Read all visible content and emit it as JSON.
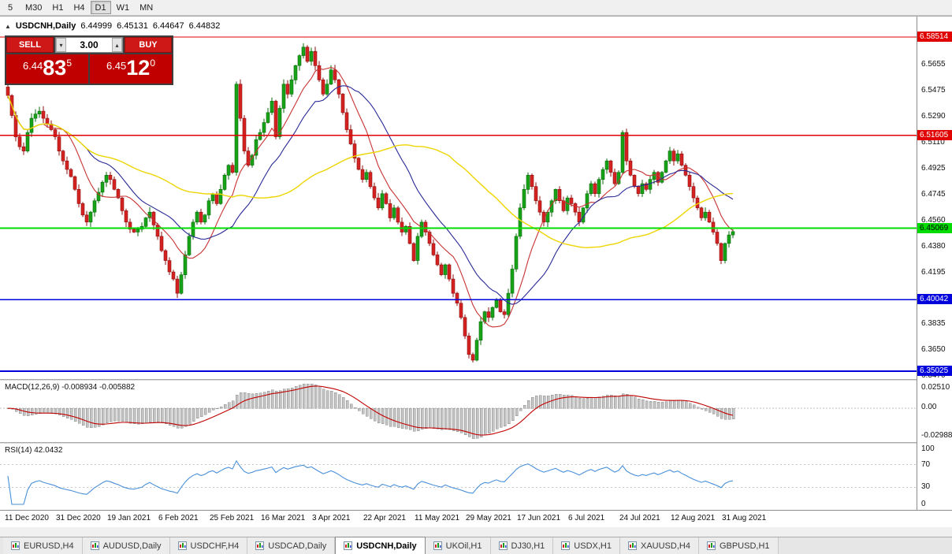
{
  "toolbar": {
    "timeframes": [
      {
        "label": "5",
        "active": false
      },
      {
        "label": "M30",
        "active": false
      },
      {
        "label": "H1",
        "active": false
      },
      {
        "label": "H4",
        "active": false
      },
      {
        "label": "D1",
        "active": true
      },
      {
        "label": "W1",
        "active": false
      },
      {
        "label": "MN",
        "active": false
      }
    ]
  },
  "header": {
    "panel_toggle": "▲",
    "symbol": "USDCNH,Daily",
    "open": "6.44999",
    "high": "6.45131",
    "low": "6.44647",
    "close": "6.44832"
  },
  "trade_panel": {
    "sell_label": "SELL",
    "buy_label": "BUY",
    "volume": "3.00",
    "volume_down_glyph": "▾",
    "volume_up_glyph": "▴",
    "sell": {
      "big": "6.44",
      "pips": "83",
      "sup": "5"
    },
    "buy": {
      "big": "6.45",
      "pips": "12",
      "sup": "0"
    }
  },
  "macd": {
    "label": "MACD(12,26,9) -0.008934 -0.005882",
    "axis": [
      "0.02510",
      "0.00",
      "-0.02988"
    ],
    "histogram_color": "#C4C4C4",
    "signal_color": "#C00000"
  },
  "rsi": {
    "label": "RSI(14) 42.0432",
    "axis": [
      "100",
      "70",
      "30",
      "0"
    ],
    "levels": [
      70,
      30
    ],
    "line_color": "#4A90D9"
  },
  "tabs": [
    {
      "label": "EURUSD,H4",
      "active": false
    },
    {
      "label": "AUDUSD,Daily",
      "active": false
    },
    {
      "label": "USDCHF,H4",
      "active": false
    },
    {
      "label": "USDCAD,Daily",
      "active": false
    },
    {
      "label": "USDCNH,Daily",
      "active": true
    },
    {
      "label": "UKOil,H1",
      "active": false
    },
    {
      "label": "DJ30,H1",
      "active": false
    },
    {
      "label": "USDX,H1",
      "active": false
    },
    {
      "label": "XAUUSD,H4",
      "active": false
    },
    {
      "label": "GBPUSD,H1",
      "active": false
    }
  ],
  "chart_data": {
    "type": "candlestick",
    "symbol": "USDCNH",
    "timeframe": "Daily",
    "ohlc_header": {
      "open": 6.44999,
      "high": 6.45131,
      "low": 6.44647,
      "close": 6.44832
    },
    "price_range": {
      "top": 6.5995,
      "bottom": 6.3447
    },
    "candle_up_color": "#17A317",
    "candle_down_color": "#D42222",
    "closes": [
      6.544,
      6.53,
      6.515,
      6.508,
      6.505,
      6.518,
      6.528,
      6.531,
      6.533,
      6.528,
      6.524,
      6.52,
      6.515,
      6.505,
      6.498,
      6.492,
      6.487,
      6.478,
      6.468,
      6.46,
      6.455,
      6.462,
      6.47,
      6.476,
      6.483,
      6.488,
      6.485,
      6.478,
      6.472,
      6.463,
      6.455,
      6.45,
      6.448,
      6.45,
      6.452,
      6.458,
      6.462,
      6.453,
      6.445,
      6.435,
      6.428,
      6.42,
      6.415,
      6.405,
      6.418,
      6.432,
      6.445,
      6.455,
      6.462,
      6.455,
      6.46,
      6.47,
      6.475,
      6.468,
      6.478,
      6.488,
      6.495,
      6.49,
      6.552,
      6.528,
      6.505,
      6.495,
      6.502,
      6.513,
      6.518,
      6.525,
      6.532,
      6.54,
      6.515,
      6.535,
      6.552,
      6.545,
      6.555,
      6.565,
      6.572,
      6.578,
      6.568,
      6.575,
      6.565,
      6.555,
      6.545,
      6.552,
      6.562,
      6.555,
      6.545,
      6.532,
      6.52,
      6.51,
      6.5,
      6.492,
      6.485,
      6.49,
      6.48,
      6.472,
      6.465,
      6.475,
      6.468,
      6.458,
      6.465,
      6.455,
      6.448,
      6.452,
      6.44,
      6.428,
      6.445,
      6.455,
      6.448,
      6.44,
      6.432,
      6.425,
      6.418,
      6.425,
      6.415,
      6.405,
      6.398,
      6.388,
      6.375,
      6.362,
      6.358,
      6.372,
      6.385,
      6.392,
      6.388,
      6.395,
      6.4,
      6.392,
      6.39,
      6.405,
      6.422,
      6.445,
      6.465,
      6.478,
      6.488,
      6.48,
      6.47,
      6.462,
      6.455,
      6.462,
      6.47,
      6.478,
      6.47,
      6.463,
      6.472,
      6.468,
      6.462,
      6.455,
      6.465,
      6.475,
      6.482,
      6.475,
      6.485,
      6.492,
      6.498,
      6.49,
      6.482,
      6.49,
      6.518,
      6.498,
      6.488,
      6.48,
      6.475,
      6.482,
      6.478,
      6.485,
      6.49,
      6.483,
      6.49,
      6.498,
      6.505,
      6.498,
      6.503,
      6.495,
      6.488,
      6.48,
      6.472,
      6.465,
      6.458,
      6.462,
      6.455,
      6.448,
      6.44,
      6.428,
      6.44,
      6.446,
      6.44832
    ],
    "hlines": [
      {
        "price": 6.58514,
        "label": "6.58514",
        "color": "#E00000",
        "text_color": "#FFFFFF",
        "width": 1.2
      },
      {
        "price": 6.51605,
        "label": "6.51605",
        "color": "#E00000",
        "text_color": "#FFFFFF",
        "width": 1.2
      },
      {
        "price": 6.45069,
        "label": "6.45069",
        "color": "#00DC00",
        "text_color": "#000000",
        "width": 2
      },
      {
        "price": 6.40042,
        "label": "6.40042",
        "color": "#0000DC",
        "text_color": "#FFFFFF",
        "width": 1.6
      },
      {
        "price": 6.35025,
        "label": "6.35025",
        "color": "#0000DC",
        "text_color": "#FFFFFF",
        "width": 1.6
      }
    ],
    "axis_ticks": [
      6.5655,
      6.5475,
      6.529,
      6.511,
      6.4925,
      6.4745,
      6.456,
      6.438,
      6.4195,
      6.3835,
      6.365,
      6.347
    ],
    "moving_averages": [
      {
        "period": 10,
        "color": "#C83232",
        "width": 1.1
      },
      {
        "period": 21,
        "color": "#282896",
        "width": 1.1
      },
      {
        "period": 55,
        "color": "#EDD500",
        "width": 1.4
      }
    ],
    "x_labels": [
      {
        "label": "11 Dec 2020",
        "i": 0
      },
      {
        "label": "31 Dec 2020",
        "i": 13
      },
      {
        "label": "19 Jan 2021",
        "i": 26
      },
      {
        "label": "6 Feb 2021",
        "i": 39
      },
      {
        "label": "25 Feb 2021",
        "i": 52
      },
      {
        "label": "16 Mar 2021",
        "i": 65
      },
      {
        "label": "3 Apr 2021",
        "i": 78
      },
      {
        "label": "22 Apr 2021",
        "i": 91
      },
      {
        "label": "11 May 2021",
        "i": 104
      },
      {
        "label": "29 May 2021",
        "i": 117
      },
      {
        "label": "17 Jun 2021",
        "i": 130
      },
      {
        "label": "6 Jul 2021",
        "i": 143
      },
      {
        "label": "24 Jul 2021",
        "i": 156
      },
      {
        "label": "12 Aug 2021",
        "i": 169
      },
      {
        "label": "31 Aug 2021",
        "i": 182
      }
    ]
  }
}
